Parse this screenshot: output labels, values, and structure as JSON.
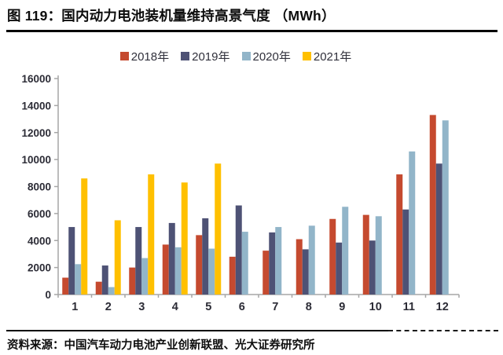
{
  "header": {
    "title": "图 119：国内动力电池装机量维持高景气度 （MWh）"
  },
  "footer": {
    "source": "资料来源：中国汽车动力电池产业创新联盟、光大证券研究所"
  },
  "chart_data": {
    "type": "bar",
    "title": "国内动力电池装机量维持高景气度",
    "unit": "MWh",
    "categories": [
      "1",
      "2",
      "3",
      "4",
      "5",
      "6",
      "7",
      "8",
      "9",
      "10",
      "11",
      "12"
    ],
    "series": [
      {
        "name": "2018年",
        "color": "#C54A2F",
        "values": [
          1250,
          950,
          2000,
          3700,
          4400,
          2800,
          3250,
          4100,
          5600,
          5900,
          8900,
          13300
        ]
      },
      {
        "name": "2019年",
        "color": "#4E5275",
        "values": [
          5000,
          2150,
          5000,
          5300,
          5650,
          6600,
          4600,
          3350,
          3850,
          4000,
          6300,
          9700
        ]
      },
      {
        "name": "2020年",
        "color": "#92B5C9",
        "values": [
          2250,
          550,
          2700,
          3500,
          3400,
          4650,
          5000,
          5100,
          6500,
          5800,
          10600,
          12900
        ]
      },
      {
        "name": "2021年",
        "color": "#FFC000",
        "values": [
          8600,
          5500,
          8900,
          8300,
          9700,
          null,
          null,
          null,
          null,
          null,
          null,
          null
        ]
      }
    ],
    "xlabel": "",
    "ylabel": "",
    "ylim": [
      0,
      16000
    ],
    "yticks": [
      0,
      2000,
      4000,
      6000,
      8000,
      10000,
      12000,
      14000,
      16000
    ],
    "grid": false,
    "legend_position": "top",
    "axis_color": "#A6A6A6"
  }
}
